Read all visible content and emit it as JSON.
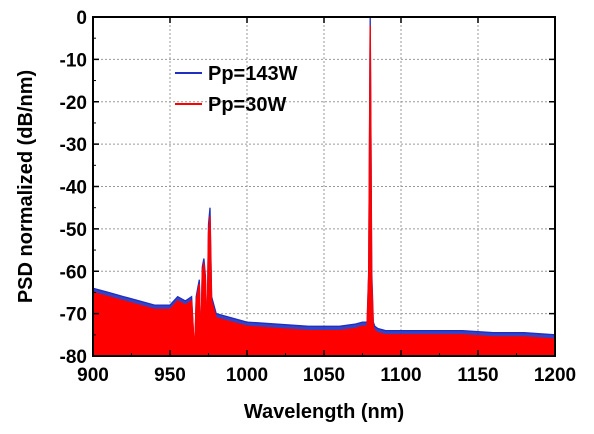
{
  "chart_data": {
    "type": "line",
    "xlabel": "Wavelength (nm)",
    "ylabel": "PSD normalized (dB/nm)",
    "xlim": [
      900,
      1200
    ],
    "ylim": [
      -80,
      0
    ],
    "xticks": [
      900,
      950,
      1000,
      1050,
      1100,
      1150,
      1200
    ],
    "yticks": [
      0,
      -10,
      -20,
      -30,
      -40,
      -50,
      -60,
      -70,
      -80
    ],
    "xtick_labels": [
      "900",
      "950",
      "1000",
      "1050",
      "1100",
      "1150",
      "1200"
    ],
    "ytick_labels": [
      "0",
      "-10",
      "-20",
      "-30",
      "-40",
      "-50",
      "-60",
      "-70",
      "-80"
    ],
    "grid": true,
    "legend_position": "top-left",
    "series": [
      {
        "name": "Pp=143W",
        "color": "#1f2fbf",
        "x": [
          900,
          910,
          920,
          930,
          940,
          950,
          955,
          960,
          964,
          966,
          967,
          968,
          969,
          970,
          971,
          972,
          973,
          974,
          975,
          976,
          977,
          980,
          990,
          1000,
          1020,
          1040,
          1060,
          1070,
          1075,
          1078,
          1079,
          1080,
          1080.5,
          1081,
          1082,
          1083,
          1085,
          1090,
          1100,
          1120,
          1140,
          1160,
          1180,
          1200
        ],
        "y": [
          -64,
          -65,
          -66,
          -67,
          -68,
          -68,
          -66,
          -67,
          -66,
          -80,
          -66,
          -64,
          -62,
          -78,
          -59,
          -57,
          -61,
          -76,
          -49,
          -45,
          -66,
          -70,
          -71,
          -72,
          -72.5,
          -73,
          -73,
          -72.5,
          -72,
          -72,
          -60,
          0,
          -30,
          -60,
          -72,
          -73,
          -73.5,
          -74,
          -74,
          -74,
          -74,
          -74.5,
          -74.5,
          -75
        ]
      },
      {
        "name": "Pp=30W",
        "color": "#ff0000",
        "x": [
          900,
          910,
          920,
          930,
          940,
          950,
          955,
          960,
          964,
          966,
          967,
          968,
          969,
          970,
          971,
          972,
          973,
          974,
          975,
          976,
          977,
          980,
          990,
          1000,
          1020,
          1040,
          1060,
          1070,
          1075,
          1078,
          1079,
          1080,
          1080.5,
          1081,
          1082,
          1083,
          1085,
          1090,
          1100,
          1120,
          1140,
          1160,
          1180,
          1200
        ],
        "y": [
          -65,
          -66,
          -67,
          -68,
          -69,
          -69,
          -67,
          -68,
          -67,
          -79,
          -67,
          -65,
          -63,
          -77,
          -60,
          -58,
          -62,
          -75,
          -51,
          -47,
          -67,
          -71,
          -72,
          -73,
          -73.5,
          -74,
          -74,
          -73.5,
          -73,
          -73,
          -61,
          -2,
          -33,
          -62,
          -73,
          -74,
          -74.5,
          -75,
          -75,
          -75,
          -75,
          -75.5,
          -75.5,
          -76
        ]
      }
    ]
  }
}
